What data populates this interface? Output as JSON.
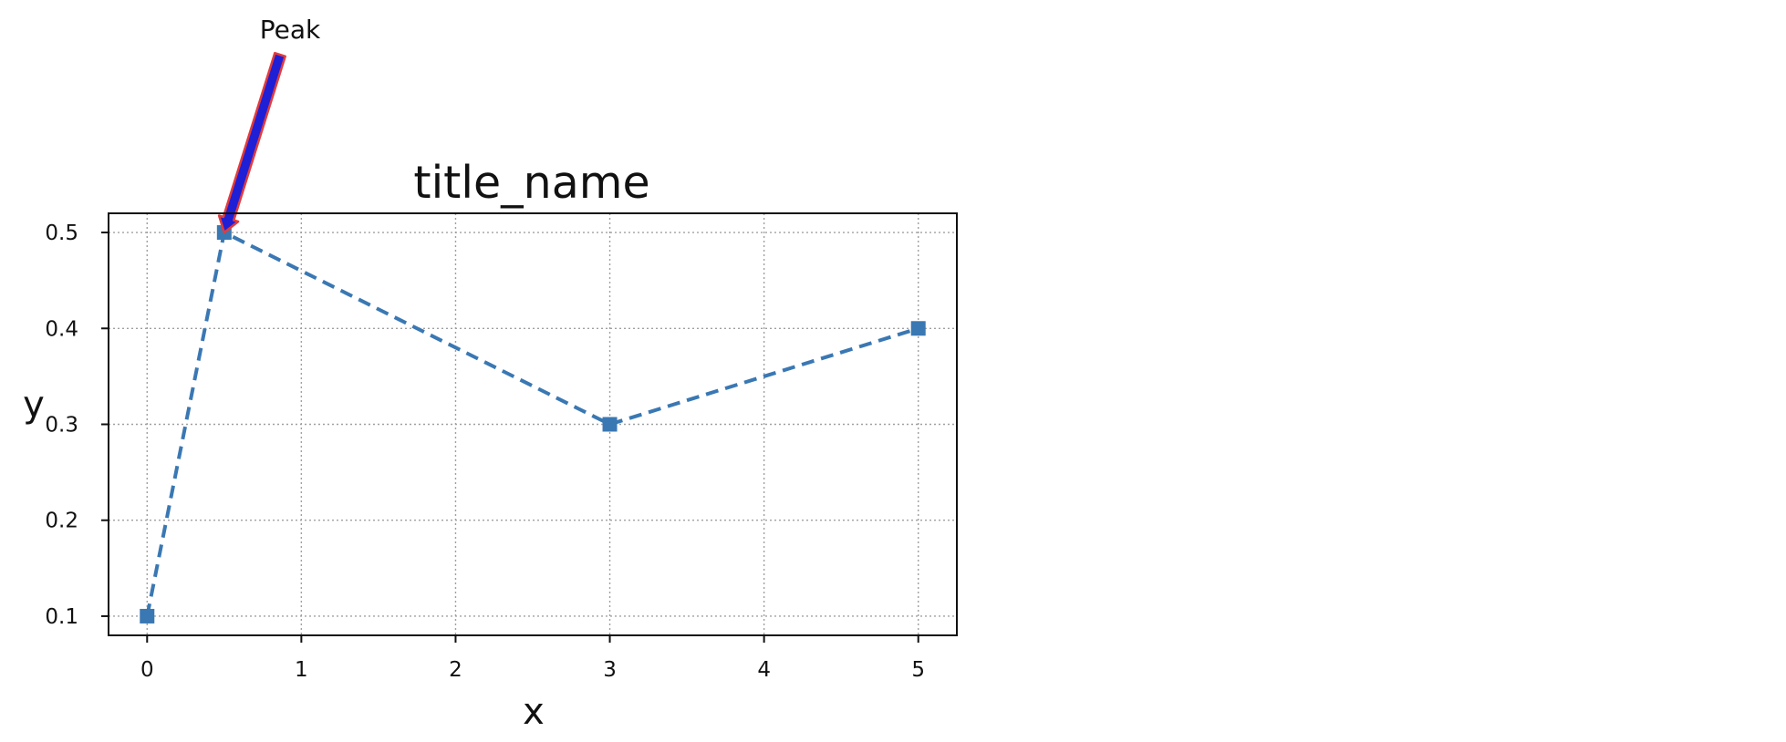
{
  "chart_data": {
    "type": "line",
    "title": "title_name",
    "xlabel": "x",
    "ylabel": "y",
    "x": [
      0,
      0.5,
      3,
      5
    ],
    "xlim": [
      -0.25,
      5.25
    ],
    "ylim": [
      0.08,
      0.52
    ],
    "xticks": [
      0,
      1,
      2,
      3,
      4,
      5
    ],
    "yticks": [
      0.1,
      0.2,
      0.3,
      0.4,
      0.5
    ],
    "xtick_labels": [
      "0",
      "1",
      "2",
      "3",
      "4",
      "5"
    ],
    "ytick_labels": [
      "0.1",
      "0.2",
      "0.3",
      "0.4",
      "0.5"
    ],
    "grid": true,
    "series": [
      {
        "values": [
          0.1,
          0.5,
          0.3,
          0.4
        ],
        "color": "#3a78b3",
        "line_style": "dashed",
        "marker": "square"
      }
    ],
    "annotations": [
      {
        "text": "Peak",
        "x": 0.5,
        "y": 0.5,
        "arrow_face_color": "#1f1fd6",
        "arrow_edge_color": "#e23b3b"
      }
    ],
    "colors": {
      "grid": "#a0a0a0",
      "axes": "#111111",
      "background": "#ffffff"
    }
  }
}
